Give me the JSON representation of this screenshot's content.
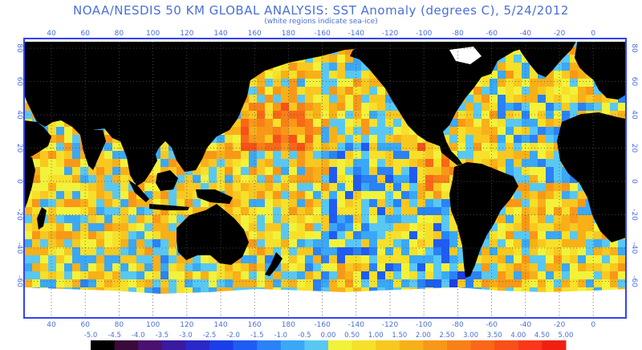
{
  "header": {
    "title": "NOAA/NESDIS 50 KM GLOBAL ANALYSIS: SST Anomaly (degrees C), 5/24/2012",
    "subtitle": "(white regions indicate sea-ice)"
  },
  "map": {
    "lon_ticks": [
      "40",
      "60",
      "80",
      "100",
      "120",
      "140",
      "160",
      "180",
      "-160",
      "-140",
      "-120",
      "-100",
      "-80",
      "-60",
      "-40",
      "-20",
      "0"
    ],
    "lat_ticks": [
      "80",
      "60",
      "40",
      "20",
      "0",
      "-20",
      "-40",
      "-60"
    ],
    "colors": {
      "land": "#000000",
      "ice": "#ffffff",
      "frame": "#3344ee",
      "grid": "#555555"
    }
  },
  "legend": {
    "labels": [
      "-5.0",
      "-4.5",
      "-4.0",
      "-3.5",
      "-3.0",
      "-2.5",
      "-2.0",
      "-1.5",
      "-1.0",
      "-0.5",
      "0.00",
      "0.50",
      "1.00",
      "1.50",
      "2.00",
      "2.50",
      "3.00",
      "3.50",
      "4.00",
      "4.50",
      "5.00"
    ],
    "colors": [
      "#000000",
      "#3a0a3a",
      "#4b1070",
      "#3a1aa0",
      "#2a28c8",
      "#1c3ee6",
      "#1e5cf2",
      "#2a82f6",
      "#3aa8f6",
      "#58c8f2",
      "#f2f23a",
      "#f6e02a",
      "#f8c820",
      "#f8b018",
      "#f89818",
      "#f88018",
      "#f86818",
      "#f85018",
      "#f83818",
      "#f02010"
    ]
  }
}
